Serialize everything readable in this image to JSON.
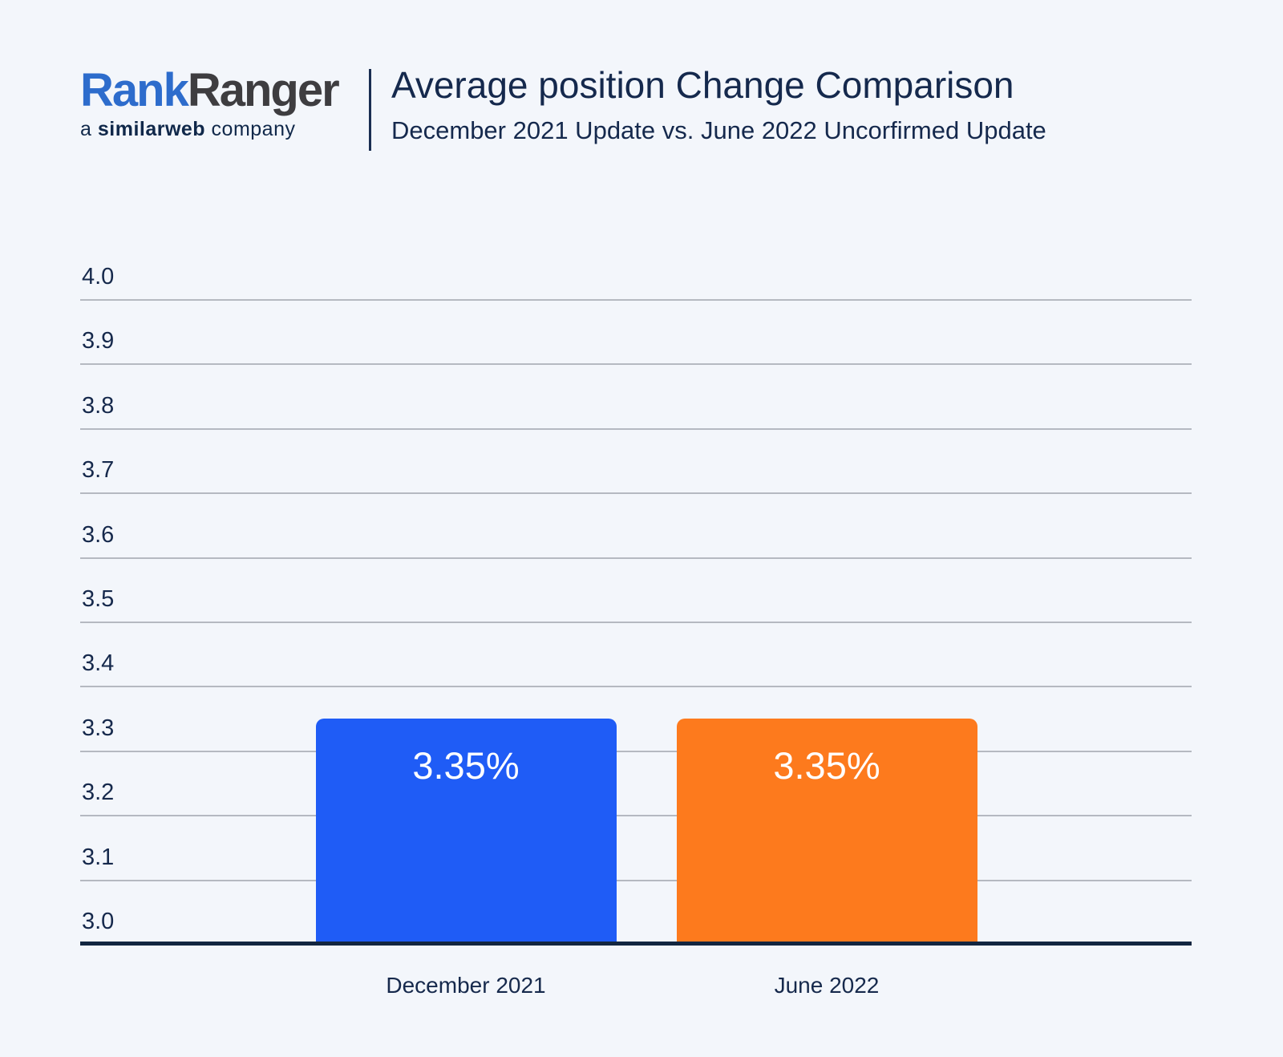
{
  "logo": {
    "brand_part_blue": "Rank",
    "brand_part_dark": "Ranger",
    "tagline_a": "a",
    "tagline_brand": "similarweb",
    "tagline_rest": "company"
  },
  "header": {
    "title": "Average position Change Comparison",
    "subtitle": "December 2021 Update vs. June 2022 Uncorfirmed Update"
  },
  "chart_data": {
    "type": "bar",
    "title": "Average position Change Comparison",
    "subtitle": "December 2021 Update vs. June 2022 Uncorfirmed Update",
    "categories": [
      "December 2021",
      "June 2022"
    ],
    "values": [
      3.35,
      3.35
    ],
    "value_labels": [
      "3.35%",
      "3.35%"
    ],
    "bar_colors": [
      "#1f5cf6",
      "#fd7a1d"
    ],
    "ylim": [
      3.0,
      4.0
    ],
    "ytick_labels": [
      "4.0",
      "3.9",
      "3.8",
      "3.7",
      "3.6",
      "3.5",
      "3.4",
      "3.3",
      "3.2",
      "3.1",
      "3.0"
    ],
    "grid": true,
    "legend": "none"
  },
  "colors": {
    "background": "#f3f6fb",
    "text_navy": "#16294c",
    "gridline": "#b5b9c1",
    "axis_line": "#132640",
    "logo_blue": "#2d6ccc",
    "logo_dark": "#3e3d40",
    "bar_blue": "#1f5cf6",
    "bar_orange": "#fd7a1d"
  }
}
